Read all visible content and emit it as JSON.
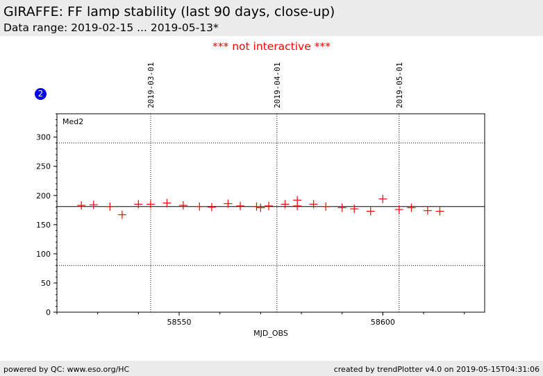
{
  "header": {
    "title": "GIRAFFE: FF lamp stability (last 90 days, close-up)",
    "subtitle": "Data range: 2019-02-15 ... 2019-05-13*"
  },
  "notice": "*** not interactive ***",
  "badge": "2",
  "footer": {
    "left": "powered by QC: www.eso.org/HC",
    "right": "created by trendPlotter v4.0 on 2019-05-15T04:31:06"
  },
  "colors": {
    "marker": "#ff0000",
    "notice": "#ff0000",
    "badge": "#0000ee",
    "band": "#ececec"
  },
  "chart_data": {
    "type": "scatter",
    "panel_label": "Med2",
    "xlabel": "MJD_OBS",
    "ylabel": "",
    "xlim": [
      58520,
      58625
    ],
    "ylim": [
      0,
      340
    ],
    "x_major_ticks": [
      58550,
      58600
    ],
    "x_minor_step": 10,
    "y_ticks": [
      0,
      50,
      100,
      150,
      200,
      250,
      300
    ],
    "y_minor_step": 10,
    "reference_lines": {
      "mean": 181,
      "upper": 290,
      "lower": 80
    },
    "date_markers": [
      {
        "label": "2019-03-01",
        "x": 58543
      },
      {
        "label": "2019-04-01",
        "x": 58574
      },
      {
        "label": "2019-05-01",
        "x": 58604
      }
    ],
    "marker": "+",
    "points": [
      [
        58526,
        183
      ],
      [
        58529,
        184
      ],
      [
        58533,
        181
      ],
      [
        58536,
        167
      ],
      [
        58540,
        185
      ],
      [
        58543,
        185
      ],
      [
        58547,
        187
      ],
      [
        58551,
        183
      ],
      [
        58555,
        181
      ],
      [
        58558,
        180
      ],
      [
        58562,
        186
      ],
      [
        58565,
        182
      ],
      [
        58569,
        181
      ],
      [
        58570,
        179
      ],
      [
        58572,
        182
      ],
      [
        58576,
        185
      ],
      [
        58579,
        182
      ],
      [
        58579,
        192
      ],
      [
        58583,
        185
      ],
      [
        58586,
        181
      ],
      [
        58590,
        179
      ],
      [
        58593,
        177
      ],
      [
        58597,
        173
      ],
      [
        58600,
        194
      ],
      [
        58604,
        176
      ],
      [
        58607,
        179
      ],
      [
        58611,
        174
      ],
      [
        58614,
        173
      ]
    ]
  }
}
